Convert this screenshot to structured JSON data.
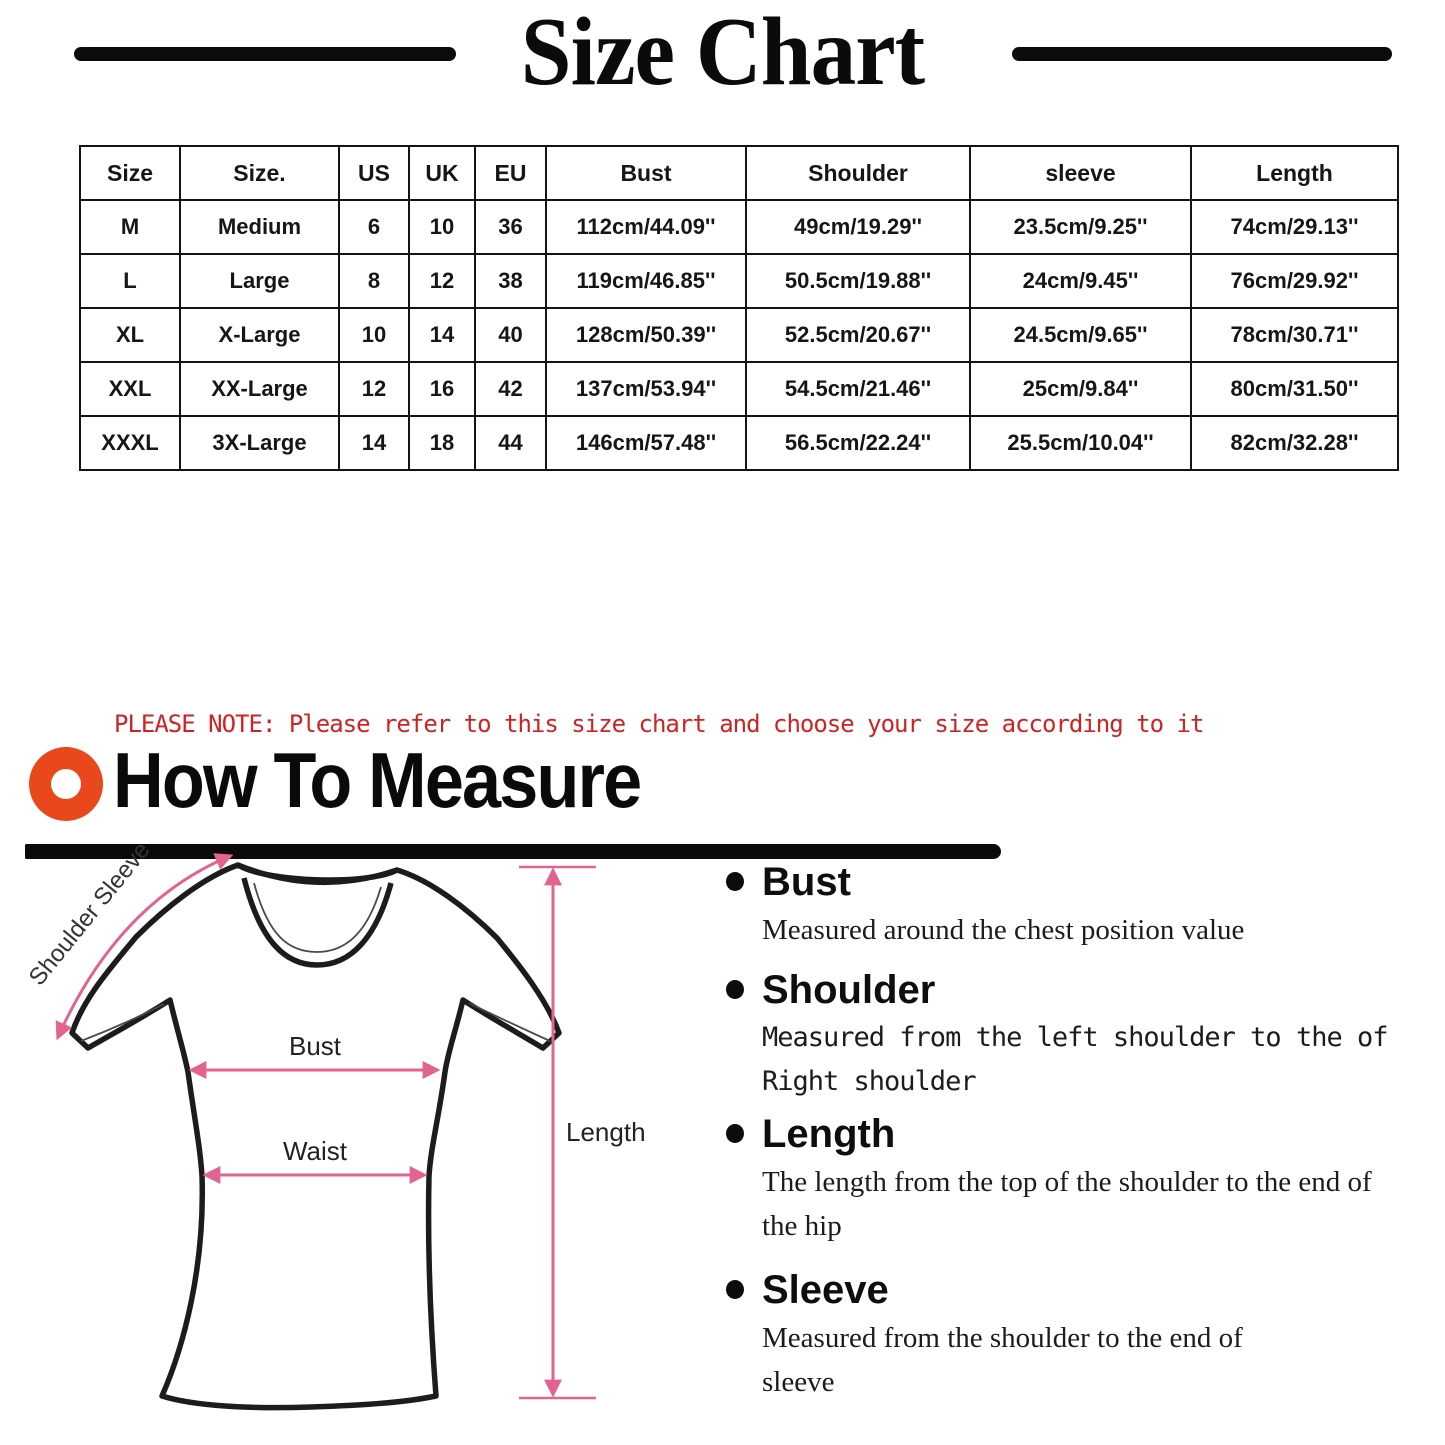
{
  "title": "Size Chart",
  "size_table": {
    "headers": [
      "Size",
      "Size.",
      "US",
      "UK",
      "EU",
      "Bust",
      "Shoulder",
      "sleeve",
      "Length"
    ],
    "rows": [
      [
        "M",
        "Medium",
        "6",
        "10",
        "36",
        "112cm/44.09''",
        "49cm/19.29''",
        "23.5cm/9.25''",
        "74cm/29.13''"
      ],
      [
        "L",
        "Large",
        "8",
        "12",
        "38",
        "119cm/46.85''",
        "50.5cm/19.88''",
        "24cm/9.45''",
        "76cm/29.92''"
      ],
      [
        "XL",
        "X-Large",
        "10",
        "14",
        "40",
        "128cm/50.39''",
        "52.5cm/20.67''",
        "24.5cm/9.65''",
        "78cm/30.71''"
      ],
      [
        "XXL",
        "XX-Large",
        "12",
        "16",
        "42",
        "137cm/53.94''",
        "54.5cm/21.46''",
        "25cm/9.84''",
        "80cm/31.50''"
      ],
      [
        "XXXL",
        "3X-Large",
        "14",
        "18",
        "44",
        "146cm/57.48''",
        "56.5cm/22.24''",
        "25.5cm/10.04''",
        "82cm/32.28''"
      ]
    ]
  },
  "note": "PLEASE NOTE: Please refer to this size chart and choose your size according to it",
  "how_to_measure": {
    "heading": "How To Measure"
  },
  "diagram_labels": {
    "shoulder_sleeve": "Shoulder Sleeve",
    "bust": "Bust",
    "waist": "Waist",
    "length": "Length"
  },
  "measure_guide": [
    {
      "term": "Bust",
      "desc": "Measured around the chest position value"
    },
    {
      "term": "Shoulder",
      "desc": "Measured from the left shoulder to the of Right shoulder"
    },
    {
      "term": "Length",
      "desc": "The length from the top of the shoulder to the end of the hip"
    },
    {
      "term": "Sleeve",
      "desc": "Measured from the shoulder to the end of sleeve"
    }
  ],
  "colors": {
    "accent_orange": "#E8481C",
    "annotation_pink": "#E2638F",
    "note_red": "#CF2323",
    "ink": "#111111"
  }
}
